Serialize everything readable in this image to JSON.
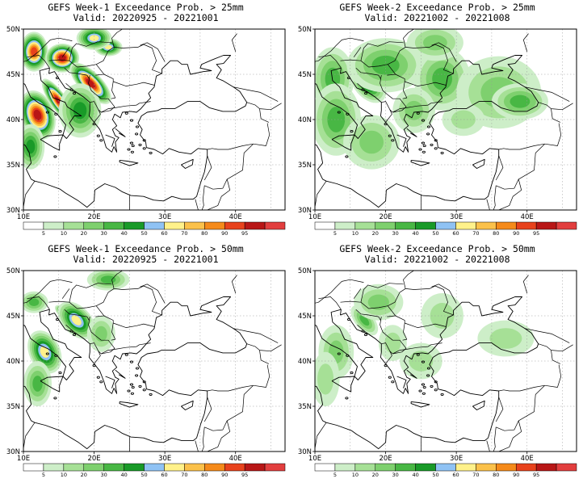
{
  "colors": {
    "bins": [
      "#ffffff",
      "#cdeec8",
      "#a6e096",
      "#7ed06e",
      "#48b744",
      "#199a28",
      "#8fc2f4",
      "#fff18a",
      "#fbc14a",
      "#f58a1a",
      "#e8421c",
      "#b81616",
      "#e23e3e"
    ],
    "coast": "#000000",
    "grid": "#999999"
  },
  "axes": {
    "lon_ticks": [
      "10E",
      "20E",
      "30E",
      "40E"
    ],
    "lat_ticks": [
      "30N",
      "35N",
      "40N",
      "45N",
      "50N"
    ]
  },
  "colorbar": {
    "labels": [
      "5",
      "10",
      "20",
      "30",
      "40",
      "50",
      "60",
      "70",
      "80",
      "90",
      "95"
    ]
  },
  "panels": [
    {
      "title": "GEFS Week-1 Exceedance Prob. > 25mm",
      "valid": "Valid: 20220925 - 20221001",
      "field": [
        {
          "lon": 15.0,
          "lat": 42.0,
          "sx": 1.2,
          "sy": 3.0,
          "rot": -35,
          "a": 0.95
        },
        {
          "lon": 11.5,
          "lat": 47.5,
          "sx": 2.0,
          "sy": 2.2,
          "rot": 0,
          "a": 0.85
        },
        {
          "lon": 15.5,
          "lat": 46.8,
          "sx": 2.4,
          "sy": 1.6,
          "rot": 0,
          "a": 0.95
        },
        {
          "lon": 19.5,
          "lat": 44.0,
          "sx": 1.6,
          "sy": 3.0,
          "rot": -45,
          "a": 0.95
        },
        {
          "lon": 12.0,
          "lat": 40.5,
          "sx": 2.4,
          "sy": 2.8,
          "rot": -20,
          "a": 0.9
        },
        {
          "lon": 22.0,
          "lat": 48.0,
          "sx": 2.0,
          "sy": 1.0,
          "rot": 0,
          "a": 0.6
        },
        {
          "lon": 18.0,
          "lat": 41.0,
          "sx": 3.0,
          "sy": 3.0,
          "rot": 0,
          "a": 0.45
        },
        {
          "lon": 11.0,
          "lat": 37.0,
          "sx": 2.0,
          "sy": 2.5,
          "rot": 0,
          "a": 0.4
        },
        {
          "lon": 20.0,
          "lat": 49.0,
          "sx": 2.5,
          "sy": 1.3,
          "rot": 0,
          "a": 0.55
        }
      ]
    },
    {
      "title": "GEFS Week-2 Exceedance Prob. > 25mm",
      "valid": "Valid: 20221002 - 20221008",
      "field": [
        {
          "lon": 17.5,
          "lat": 44.0,
          "sx": 2.0,
          "sy": 2.5,
          "rot": -40,
          "a": 0.5
        },
        {
          "lon": 12.5,
          "lat": 44.5,
          "sx": 3.0,
          "sy": 3.5,
          "rot": 0,
          "a": 0.33
        },
        {
          "lon": 20.0,
          "lat": 46.0,
          "sx": 5.5,
          "sy": 3.0,
          "rot": 0,
          "a": 0.32
        },
        {
          "lon": 13.0,
          "lat": 40.0,
          "sx": 3.5,
          "sy": 4.0,
          "rot": 0,
          "a": 0.3
        },
        {
          "lon": 28.0,
          "lat": 44.5,
          "sx": 4.0,
          "sy": 3.5,
          "rot": 0,
          "a": 0.3
        },
        {
          "lon": 36.0,
          "lat": 43.0,
          "sx": 6.0,
          "sy": 4.0,
          "rot": 0,
          "a": 0.26
        },
        {
          "lon": 39.0,
          "lat": 42.0,
          "sx": 4.0,
          "sy": 2.0,
          "rot": 0,
          "a": 0.36
        },
        {
          "lon": 18.0,
          "lat": 37.5,
          "sx": 4.0,
          "sy": 3.0,
          "rot": 0,
          "a": 0.22
        },
        {
          "lon": 24.0,
          "lat": 41.0,
          "sx": 3.0,
          "sy": 2.5,
          "rot": 0,
          "a": 0.22
        },
        {
          "lon": 27.0,
          "lat": 48.5,
          "sx": 4.0,
          "sy": 2.0,
          "rot": 0,
          "a": 0.22
        },
        {
          "lon": 31.0,
          "lat": 40.0,
          "sx": 3.0,
          "sy": 1.8,
          "rot": 0,
          "a": 0.2
        }
      ]
    },
    {
      "title": "GEFS Week-1 Exceedance Prob. > 50mm",
      "valid": "Valid: 20220925 - 20221001",
      "field": [
        {
          "lon": 13.3,
          "lat": 41.5,
          "sx": 1.2,
          "sy": 1.5,
          "rot": -30,
          "a": 0.95
        },
        {
          "lon": 16.5,
          "lat": 44.8,
          "sx": 0.9,
          "sy": 2.0,
          "rot": -50,
          "a": 0.95
        },
        {
          "lon": 19.5,
          "lat": 43.2,
          "sx": 0.9,
          "sy": 1.6,
          "rot": -45,
          "a": 0.85
        },
        {
          "lon": 13.0,
          "lat": 41.0,
          "sx": 2.2,
          "sy": 2.5,
          "rot": -25,
          "a": 0.55
        },
        {
          "lon": 17.5,
          "lat": 44.5,
          "sx": 2.0,
          "sy": 2.5,
          "rot": -45,
          "a": 0.6
        },
        {
          "lon": 11.5,
          "lat": 46.5,
          "sx": 2.0,
          "sy": 1.2,
          "rot": 0,
          "a": 0.35
        },
        {
          "lon": 12.0,
          "lat": 37.5,
          "sx": 2.0,
          "sy": 2.5,
          "rot": 0,
          "a": 0.3
        },
        {
          "lon": 22.0,
          "lat": 49.0,
          "sx": 3.0,
          "sy": 1.2,
          "rot": 0,
          "a": 0.3
        },
        {
          "lon": 21.0,
          "lat": 43.0,
          "sx": 2.0,
          "sy": 2.0,
          "rot": 0,
          "a": 0.25
        }
      ]
    },
    {
      "title": "GEFS Week-2 Exceedance Prob. > 50mm",
      "valid": "Valid: 20221002 - 20221008",
      "field": [
        {
          "lon": 17.0,
          "lat": 44.5,
          "sx": 1.3,
          "sy": 2.0,
          "rot": -40,
          "a": 0.35
        },
        {
          "lon": 13.0,
          "lat": 41.0,
          "sx": 2.5,
          "sy": 3.0,
          "rot": 0,
          "a": 0.26
        },
        {
          "lon": 19.0,
          "lat": 46.5,
          "sx": 3.5,
          "sy": 2.0,
          "rot": 0,
          "a": 0.22
        },
        {
          "lon": 28.0,
          "lat": 45.0,
          "sx": 3.0,
          "sy": 2.5,
          "rot": 0,
          "a": 0.2
        },
        {
          "lon": 37.0,
          "lat": 42.5,
          "sx": 4.0,
          "sy": 2.0,
          "rot": 0,
          "a": 0.18
        },
        {
          "lon": 21.0,
          "lat": 42.0,
          "sx": 2.0,
          "sy": 2.0,
          "rot": 0,
          "a": 0.18
        },
        {
          "lon": 11.5,
          "lat": 38.0,
          "sx": 2.0,
          "sy": 3.0,
          "rot": 0,
          "a": 0.18
        },
        {
          "lon": 25.0,
          "lat": 40.0,
          "sx": 3.0,
          "sy": 2.0,
          "rot": 0,
          "a": 0.14
        }
      ]
    }
  ]
}
